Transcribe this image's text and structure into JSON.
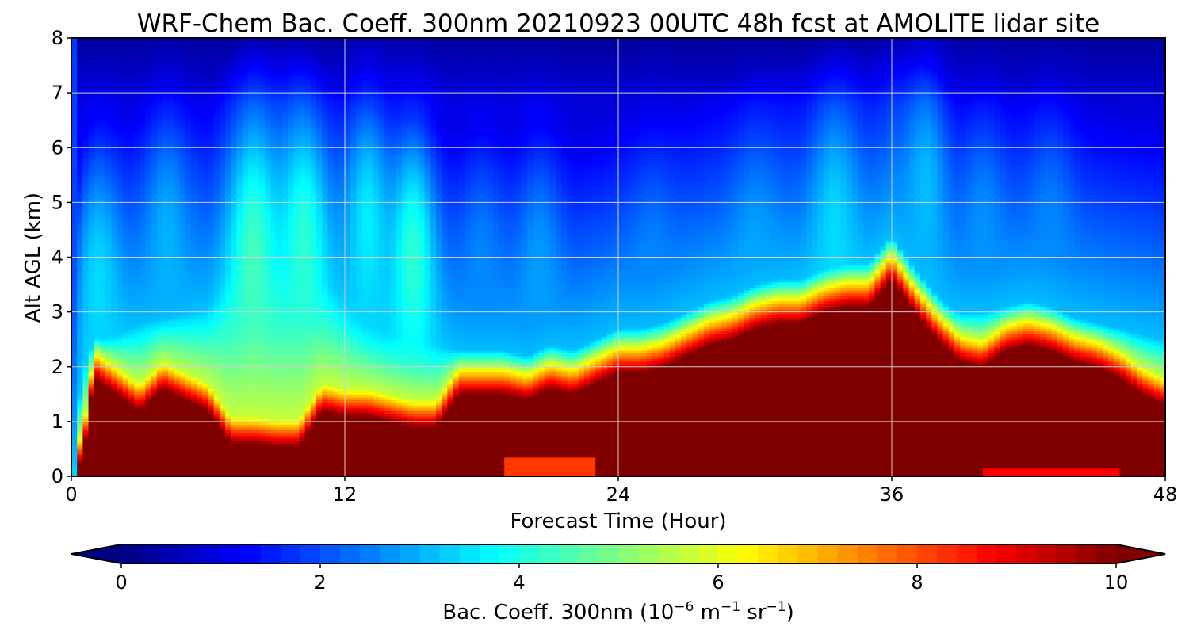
{
  "chart_data": {
    "type": "heatmap",
    "title": "WRF-Chem Bac. Coeff. 300nm  20210923 00UTC 48h fcst at AMOLITE lidar site",
    "xlabel": "Forecast Time (Hour)",
    "ylabel": "Alt AGL (km)",
    "xlim": [
      0,
      48
    ],
    "ylim": [
      0,
      8
    ],
    "x_ticks": [
      0,
      12,
      24,
      36,
      48
    ],
    "y_ticks": [
      0,
      1,
      2,
      3,
      4,
      5,
      6,
      7,
      8
    ],
    "grid": true,
    "colorbar": {
      "label": "Bac. Coeff. 300nm  (10⁻⁶ m⁻¹ sr⁻¹)",
      "label_parts": {
        "prefix": "Bac. Coeff. 300nm  (10",
        "exp1": "−6",
        "mid1": " m",
        "exp2": "−1",
        "mid2": " sr",
        "exp3": "−1",
        "suffix": ")"
      },
      "ticks": [
        0,
        2,
        4,
        6,
        8,
        10
      ],
      "range": [
        0,
        10
      ],
      "colormap": "jet",
      "extend": "both",
      "orientation": "horizontal"
    },
    "time_hours": [
      0,
      0.5,
      1,
      2,
      3,
      4,
      5,
      6,
      7,
      8,
      9,
      10,
      11,
      12,
      13,
      14,
      15,
      16,
      17,
      18,
      19,
      20,
      21,
      22,
      23,
      24,
      25,
      26,
      27,
      28,
      29,
      30,
      31,
      32,
      33,
      34,
      35,
      36,
      37,
      38,
      39,
      40,
      41,
      42,
      43,
      44,
      45,
      46,
      47,
      48
    ],
    "high_backscatter_top_km": [
      0.0,
      0.3,
      1.8,
      1.5,
      1.2,
      1.6,
      1.4,
      1.2,
      0.6,
      0.6,
      0.55,
      0.55,
      1.2,
      1.1,
      1.1,
      1.0,
      0.9,
      0.9,
      1.5,
      1.5,
      1.5,
      1.4,
      1.6,
      1.5,
      1.7,
      1.9,
      1.9,
      2.0,
      2.2,
      2.4,
      2.5,
      2.7,
      2.8,
      2.8,
      3.0,
      3.1,
      3.1,
      3.6,
      3.0,
      2.5,
      2.1,
      2.0,
      2.3,
      2.4,
      2.3,
      2.1,
      2.0,
      1.8,
      1.5,
      1.3
    ],
    "aerosol_plume_top_km": [
      0.0,
      2.0,
      2.5,
      2.6,
      2.8,
      2.9,
      3.0,
      3.1,
      3.8,
      4.3,
      4.0,
      4.0,
      3.6,
      3.2,
      2.8,
      2.6,
      2.5,
      2.4,
      2.3,
      2.2,
      2.2,
      2.2,
      2.2,
      2.2,
      2.2,
      2.3,
      2.4,
      2.4,
      2.5,
      2.5,
      2.6,
      2.7,
      2.9,
      3.0,
      3.3,
      3.5,
      3.8,
      4.2,
      3.6,
      3.2,
      3.0,
      3.0,
      3.1,
      3.1,
      3.0,
      2.9,
      2.8,
      2.7,
      2.6,
      2.5
    ],
    "plumes": [
      {
        "hour": 1.2,
        "center_km": 3.5,
        "value": 3.4
      },
      {
        "hour": 4.2,
        "center_km": 4.2,
        "value": 3.0
      },
      {
        "hour": 8.0,
        "center_km": 4.0,
        "value": 4.4
      },
      {
        "hour": 10.2,
        "center_km": 4.2,
        "value": 4.2
      },
      {
        "hour": 13.0,
        "center_km": 4.6,
        "value": 3.6
      },
      {
        "hour": 15.0,
        "center_km": 4.0,
        "value": 4.2
      },
      {
        "hour": 18.0,
        "center_km": 3.5,
        "value": 2.6
      },
      {
        "hour": 20.5,
        "center_km": 3.6,
        "value": 2.8
      },
      {
        "hour": 25.5,
        "center_km": 3.2,
        "value": 2.6
      },
      {
        "hour": 30.0,
        "center_km": 3.5,
        "value": 2.9
      },
      {
        "hour": 33.5,
        "center_km": 4.4,
        "value": 3.4
      },
      {
        "hour": 37.5,
        "center_km": 5.2,
        "value": 3.1
      },
      {
        "hour": 40.0,
        "center_km": 4.2,
        "value": 2.7
      },
      {
        "hour": 43.0,
        "center_km": 4.0,
        "value": 2.6
      }
    ],
    "values_range_note_only": null
  },
  "colors": {
    "axis": "#000000",
    "grid": "#cfcfcf"
  }
}
